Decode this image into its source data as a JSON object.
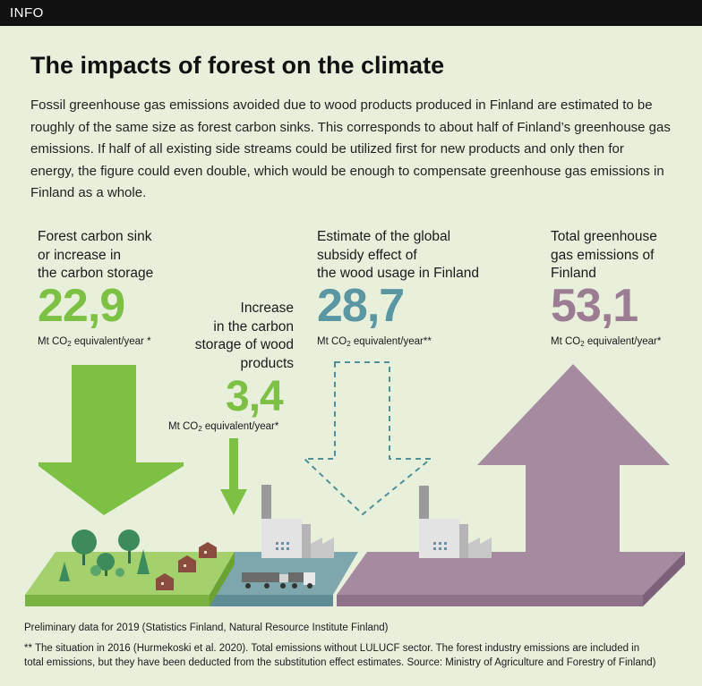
{
  "header": {
    "tag": "INFO"
  },
  "title": "The impacts of forest on the climate",
  "intro": "Fossil greenhouse gas emissions avoided due to wood products produced in Finland are estimated to be roughly of the same size as forest carbon sinks. This corresponds to about half of Finland’s greenhouse gas emissions. If half of all existing side streams could be utilized first for new products and only then for energy, the figure could even double, which would be enough to compensate greenhouse gas emissions in Finland as a whole.",
  "unit_prefix": "Mt CO",
  "unit_sub": "2",
  "metrics": {
    "forest_sink": {
      "label_lines": [
        "Forest carbon sink",
        "or increase in",
        "the carbon storage"
      ],
      "value": "22,9",
      "unit_suffix": " equivalent/year *",
      "color": "#7cc143"
    },
    "wood_products": {
      "label_lines": [
        "Increase",
        "in the carbon",
        "storage of wood",
        "products"
      ],
      "value": "3,4",
      "unit_suffix": " equivalent/year*",
      "color": "#7cc143"
    },
    "substitution": {
      "label_lines": [
        "Estimate of the global",
        "subsidy effect of",
        "the wood usage in Finland"
      ],
      "value": "28,7",
      "unit_suffix": " equivalent/year**",
      "color": "#5b97a2"
    },
    "total_emissions": {
      "label_lines": [
        "Total greenhouse",
        "gas emissions of",
        "Finland"
      ],
      "value": "53,1",
      "unit_suffix": " equivalent/year*",
      "color": "#9b7c93"
    }
  },
  "footnotes": {
    "line1": "Preliminary data for 2019 (Statistics Finland, Natural Resource Institute Finland)",
    "line2": "** The situation in 2016 (Hurmekoski et al. 2020). Total emissions without LULUCF sector. The forest industry emissions are included in",
    "line3": "total emissions, but they have been deducted from the substitution effect estimates. Source: Ministry of Agriculture and Forestry of Finland)"
  }
}
